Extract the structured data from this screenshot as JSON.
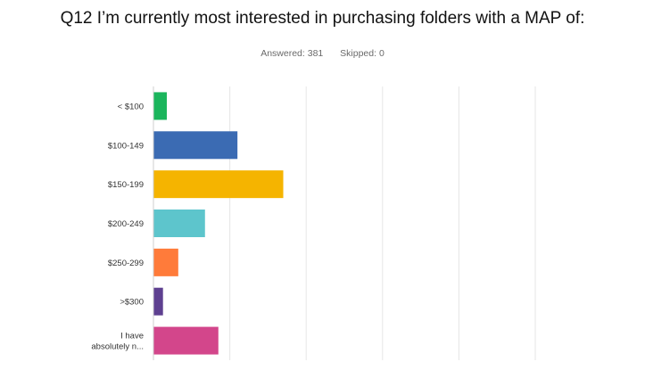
{
  "header": {
    "title": "Q12 I’m currently most interested in purchasing folders with a MAP of:",
    "answered": "Answered: 381",
    "skipped": "Skipped: 0"
  },
  "chart_data": {
    "type": "bar",
    "orientation": "horizontal",
    "categories": [
      "< $100",
      "$100-149",
      "$150-199",
      "$200-249",
      "$250-299",
      ">$300",
      "I have absolutely n..."
    ],
    "category_label_lines": [
      [
        "< $100"
      ],
      [
        "$100-149"
      ],
      [
        "$150-199"
      ],
      [
        "$200-249"
      ],
      [
        "$250-299"
      ],
      [
        ">$300"
      ],
      [
        "I have",
        "absolutely n..."
      ]
    ],
    "values": [
      3.5,
      22,
      34,
      13.5,
      6.5,
      2.5,
      17
    ],
    "colors": [
      "#1bb55c",
      "#3b6bb3",
      "#f5b400",
      "#5dc5cc",
      "#ff7b3a",
      "#5e4090",
      "#d3468b"
    ],
    "xlim": [
      0,
      100
    ],
    "grid": true,
    "legend": "none"
  }
}
